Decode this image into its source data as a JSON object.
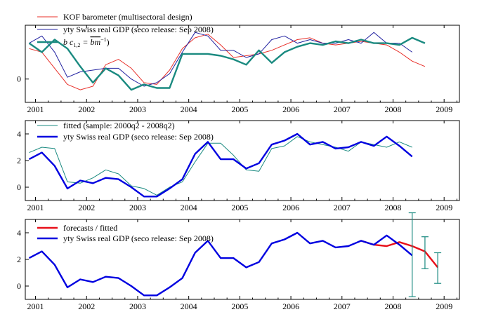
{
  "chart_data": [
    {
      "type": "line",
      "legend_placement": "top-left",
      "xlim": [
        2000.8,
        2009.3
      ],
      "ylim": [
        -1.3,
        3.0
      ],
      "x_ticks": [
        2001,
        2002,
        2003,
        2004,
        2005,
        2006,
        2007,
        2008,
        2009
      ],
      "y_ticks": [
        0
      ],
      "series": [
        {
          "name": "KOF barometer (multisectoral design)",
          "color": "#e8302a",
          "width": 1,
          "x": [
            2000.875,
            2001.125,
            2001.375,
            2001.625,
            2001.875,
            2002.125,
            2002.375,
            2002.625,
            2002.875,
            2003.125,
            2003.375,
            2003.625,
            2003.875,
            2004.125,
            2004.375,
            2004.625,
            2004.875,
            2005.125,
            2005.375,
            2005.625,
            2005.875,
            2006.125,
            2006.375,
            2006.625,
            2006.875,
            2007.125,
            2007.375,
            2007.625,
            2007.875,
            2008.125,
            2008.375,
            2008.625
          ],
          "y": [
            1.7,
            1.5,
            0.6,
            -0.3,
            -0.6,
            -0.4,
            0.8,
            1.1,
            0.6,
            -0.2,
            -0.3,
            0.5,
            1.7,
            2.3,
            2.5,
            1.9,
            1.2,
            1.3,
            1.4,
            1.6,
            1.9,
            2.2,
            2.3,
            2.0,
            1.9,
            2.0,
            2.1,
            2.0,
            1.9,
            1.5,
            1.0,
            0.7
          ]
        },
        {
          "name": "yty Swiss real GDP (seco release: Sep 2008)",
          "color": "#2020a0",
          "width": 1,
          "x": [
            2000.875,
            2001.125,
            2001.375,
            2001.625,
            2001.875,
            2002.125,
            2002.375,
            2002.625,
            2002.875,
            2003.125,
            2003.375,
            2003.625,
            2003.875,
            2004.125,
            2004.375,
            2004.625,
            2004.875,
            2005.125,
            2005.375,
            2005.625,
            2005.875,
            2006.125,
            2006.375,
            2006.625,
            2006.875,
            2007.125,
            2007.375,
            2007.625,
            2007.875,
            2008.125,
            2008.375
          ],
          "y": [
            2.0,
            2.4,
            1.5,
            0.1,
            0.4,
            0.5,
            0.6,
            0.6,
            0.0,
            -0.4,
            -0.2,
            0.3,
            1.5,
            2.6,
            2.4,
            1.6,
            1.6,
            1.2,
            1.4,
            2.2,
            2.4,
            2.0,
            2.2,
            2.0,
            2.0,
            2.2,
            2.0,
            2.6,
            2.0,
            2.0,
            1.5
          ]
        },
        {
          "name": "",
          "color": "#1a8a80",
          "width": 2.4,
          "x": [
            2000.875,
            2001.125,
            2001.375,
            2001.625,
            2001.875,
            2002.125,
            2002.375,
            2002.625,
            2002.875,
            2003.125,
            2003.375,
            2003.625,
            2003.875,
            2004.125,
            2004.375,
            2004.625,
            2004.875,
            2005.125,
            2005.375,
            2005.625,
            2005.875,
            2006.125,
            2006.375,
            2006.625,
            2006.875,
            2007.125,
            2007.375,
            2007.625,
            2007.875,
            2008.125,
            2008.375,
            2008.625
          ],
          "y": [
            2.0,
            1.5,
            2.2,
            1.7,
            0.7,
            -0.2,
            0.6,
            0.2,
            -0.6,
            -0.3,
            -0.5,
            -0.5,
            1.4,
            1.4,
            1.4,
            1.3,
            1.1,
            0.8,
            1.6,
            0.9,
            1.5,
            1.8,
            2.0,
            1.9,
            2.1,
            2.0,
            2.2,
            2.0,
            2.0,
            1.9,
            2.3,
            2.0
          ]
        }
      ]
    },
    {
      "type": "line",
      "legend_placement": "top-left",
      "xlim": [
        2000.8,
        2009.3
      ],
      "ylim": [
        -1.0,
        5.0
      ],
      "x_ticks": [
        2001,
        2002,
        2003,
        2004,
        2005,
        2006,
        2007,
        2008,
        2009
      ],
      "y_ticks": [
        0,
        2,
        4
      ],
      "series": [
        {
          "name": "fitted (sample: 2000q2 - 2008q2)",
          "color": "#1a8a80",
          "width": 1,
          "x": [
            2000.875,
            2001.125,
            2001.375,
            2001.625,
            2001.875,
            2002.125,
            2002.375,
            2002.625,
            2002.875,
            2003.125,
            2003.375,
            2003.625,
            2003.875,
            2004.125,
            2004.375,
            2004.625,
            2004.875,
            2005.125,
            2005.375,
            2005.625,
            2005.875,
            2006.125,
            2006.375,
            2006.625,
            2006.875,
            2007.125,
            2007.375,
            2007.625,
            2007.875,
            2008.125,
            2008.375
          ],
          "y": [
            2.6,
            3.0,
            2.9,
            0.4,
            0.3,
            0.7,
            1.3,
            1.0,
            0.1,
            -0.1,
            -0.6,
            0.0,
            0.4,
            1.9,
            3.3,
            3.3,
            2.4,
            1.3,
            1.2,
            2.9,
            3.1,
            3.8,
            3.4,
            3.2,
            3.0,
            2.7,
            3.4,
            3.2,
            3.0,
            3.4,
            3.0
          ]
        },
        {
          "name": "yty Swiss real GDP (seco release: Sep 2008)",
          "color": "#0000e0",
          "width": 2.4,
          "x": [
            2000.875,
            2001.125,
            2001.375,
            2001.625,
            2001.875,
            2002.125,
            2002.375,
            2002.625,
            2002.875,
            2003.125,
            2003.375,
            2003.625,
            2003.875,
            2004.125,
            2004.375,
            2004.625,
            2004.875,
            2005.125,
            2005.375,
            2005.625,
            2005.875,
            2006.125,
            2006.375,
            2006.625,
            2006.875,
            2007.125,
            2007.375,
            2007.625,
            2007.875,
            2008.125,
            2008.375
          ],
          "y": [
            2.1,
            2.6,
            1.6,
            -0.1,
            0.5,
            0.3,
            0.7,
            0.6,
            0.0,
            -0.7,
            -0.7,
            -0.1,
            0.6,
            2.5,
            3.4,
            2.1,
            2.1,
            1.4,
            1.8,
            3.2,
            3.5,
            4.0,
            3.2,
            3.4,
            2.9,
            3.0,
            3.4,
            3.1,
            3.8,
            3.1,
            2.3
          ]
        }
      ]
    },
    {
      "type": "line",
      "legend_placement": "top-left",
      "xlim": [
        2000.8,
        2009.3
      ],
      "ylim": [
        -1.0,
        5.0
      ],
      "x_ticks": [
        2001,
        2002,
        2003,
        2004,
        2005,
        2006,
        2007,
        2008,
        2009
      ],
      "y_ticks": [
        0,
        2,
        4
      ],
      "series": [
        {
          "name": "forecasts / fitted",
          "color": "#e8101a",
          "width": 2.4,
          "x": [
            2007.375,
            2007.625,
            2007.875,
            2008.125,
            2008.375,
            2008.625,
            2008.875
          ],
          "y": [
            3.4,
            3.1,
            3.0,
            3.3,
            3.0,
            2.6,
            1.4
          ]
        },
        {
          "name": "yty Swiss real GDP (seco release: Sep 2008)",
          "color": "#0000e0",
          "width": 2.4,
          "x": [
            2000.875,
            2001.125,
            2001.375,
            2001.625,
            2001.875,
            2002.125,
            2002.375,
            2002.625,
            2002.875,
            2003.125,
            2003.375,
            2003.625,
            2003.875,
            2004.125,
            2004.375,
            2004.625,
            2004.875,
            2005.125,
            2005.375,
            2005.625,
            2005.875,
            2006.125,
            2006.375,
            2006.625,
            2006.875,
            2007.125,
            2007.375,
            2007.625,
            2007.875,
            2008.125,
            2008.375
          ],
          "y": [
            2.1,
            2.6,
            1.6,
            -0.1,
            0.5,
            0.3,
            0.7,
            0.6,
            0.0,
            -0.7,
            -0.7,
            -0.1,
            0.6,
            2.5,
            3.4,
            2.1,
            2.1,
            1.4,
            1.8,
            3.2,
            3.5,
            4.0,
            3.2,
            3.4,
            2.9,
            3.0,
            3.4,
            3.1,
            3.8,
            3.1,
            2.3
          ]
        }
      ],
      "error_bars": {
        "color": "#1a8a80",
        "items": [
          {
            "x": 2008.375,
            "low": -0.8,
            "high": 5.5
          },
          {
            "x": 2008.625,
            "low": 1.3,
            "high": 3.7
          },
          {
            "x": 2008.875,
            "low": 0.2,
            "high": 2.5
          }
        ]
      }
    }
  ]
}
